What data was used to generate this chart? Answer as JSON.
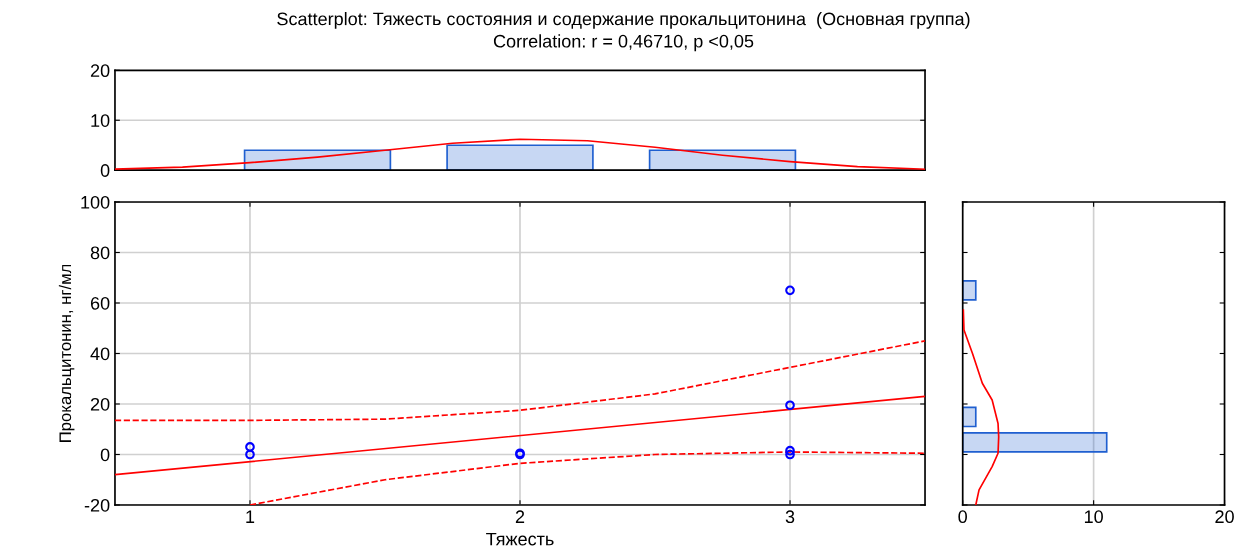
{
  "chart_data": [
    {
      "type": "bar",
      "title": "Scatterplot: Тяжесть состояния и содержание прокальцитонина  (Основная группа)",
      "subtitle": "Correlation: r = 0,46710, p <0,05",
      "xlim": [
        0.5,
        3.5
      ],
      "ylim": [
        0,
        20
      ],
      "yticks": [
        0,
        10,
        20
      ],
      "grid": "y",
      "tick_labels": "y",
      "series": [
        {
          "color": "#1f5fd0",
          "x": [
            1.25,
            2.0,
            2.75
          ],
          "values": [
            4,
            5,
            4
          ]
        },
        {
          "type": "line",
          "color": "#ff0000",
          "x": [
            0.5,
            0.75,
            1.0,
            1.25,
            1.5,
            1.75,
            2.0,
            2.25,
            2.5,
            2.75,
            3.0,
            3.25,
            3.5
          ],
          "values": [
            0.2,
            0.6,
            1.5,
            2.6,
            4.0,
            5.4,
            6.2,
            5.9,
            4.6,
            3.0,
            1.7,
            0.7,
            0.2
          ]
        }
      ]
    },
    {
      "type": "scatter",
      "xlabel": "Тяжесть",
      "ylabel": "Прокальцитонин, нг/мл",
      "xlim": [
        0.5,
        3.5
      ],
      "xticks": [
        1,
        2,
        3
      ],
      "ylim": [
        -20,
        100
      ],
      "yticks": [
        -20,
        0,
        20,
        40,
        60,
        80,
        100
      ],
      "grid": true,
      "series": [
        {
          "marker": "circle",
          "color": "#0000ff",
          "x": [
            1,
            1,
            2,
            2,
            3,
            3,
            3,
            3
          ],
          "values": [
            3,
            0,
            0,
            0.5,
            65,
            19.5,
            1.5,
            0
          ]
        },
        {
          "type": "line",
          "color": "#ff0000",
          "line_style": "solid",
          "x": [
            0.5,
            3.5
          ],
          "values": [
            -8,
            23
          ]
        },
        {
          "type": "line",
          "color": "#ff0000",
          "line_style": "dashed",
          "x": [
            0.5,
            1.0,
            1.5,
            2.0,
            2.5,
            3.0,
            3.5
          ],
          "values": [
            13.5,
            13.5,
            14,
            17.5,
            24,
            34.5,
            45
          ]
        },
        {
          "type": "line",
          "color": "#ff0000",
          "line_style": "dashed",
          "x": [
            1.0,
            1.5,
            2.0,
            2.5,
            3.0,
            3.5
          ],
          "values": [
            -20,
            -10,
            -3.5,
            0,
            1,
            0.5
          ]
        }
      ]
    },
    {
      "type": "bar",
      "orientation": "horizontal",
      "xlim": [
        0,
        20
      ],
      "xticks": [
        0,
        10,
        20
      ],
      "ylim": [
        -20,
        100
      ],
      "grid": "x",
      "tick_labels": "x",
      "series": [
        {
          "color": "#1f5fd0",
          "x": [
            4.8,
            14.85,
            65
          ],
          "values": [
            11,
            1,
            1
          ]
        },
        {
          "type": "line",
          "color": "#ff0000",
          "x": [
            -20,
            -14,
            -4.8,
            0.5,
            7,
            12.3,
            21.6,
            28.2,
            40,
            49.3,
            57.2
          ],
          "values": [
            1,
            1.25,
            2.25,
            2.7,
            2.75,
            2.7,
            2.25,
            1.5,
            0.75,
            0.1,
            0.05
          ]
        }
      ]
    }
  ]
}
